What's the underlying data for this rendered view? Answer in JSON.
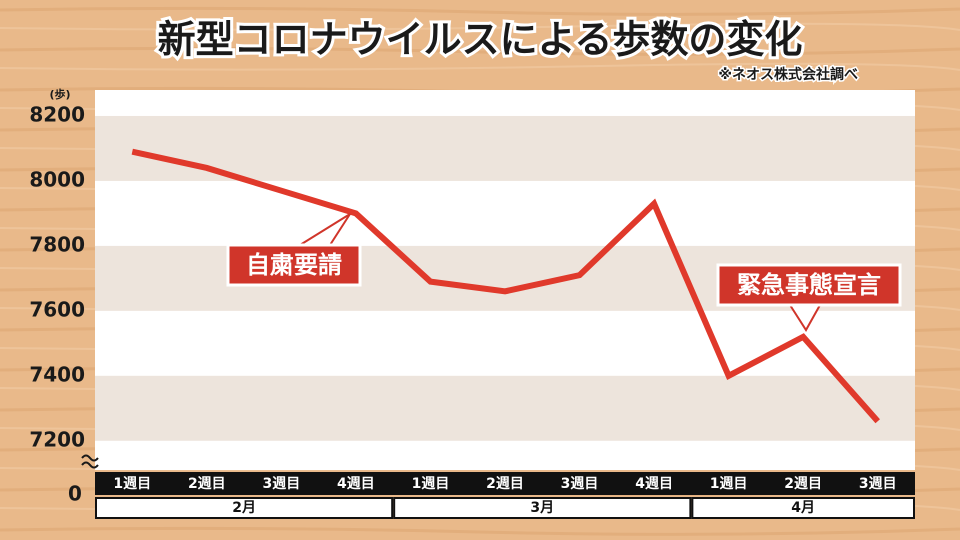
{
  "chart_data": {
    "type": "line",
    "title": "新型コロナウイルスによる歩数の変化",
    "source": "※ネオス株式会社調べ",
    "y_unit_label": "(歩)",
    "categories": [
      "1週目",
      "2週目",
      "3週目",
      "4週目",
      "1週目",
      "2週目",
      "3週目",
      "4週目",
      "1週目",
      "2週目",
      "3週目"
    ],
    "groups": [
      {
        "label": "2月",
        "span": 4
      },
      {
        "label": "3月",
        "span": 4
      },
      {
        "label": "4月",
        "span": 3
      }
    ],
    "series": [
      {
        "name": "歩数",
        "color": "#e0392b",
        "values": [
          8090,
          8040,
          7970,
          7900,
          7690,
          7660,
          7710,
          7930,
          7400,
          7520,
          7260
        ]
      }
    ],
    "ylim": [
      7110,
      8280
    ],
    "yticks": [
      7200,
      7400,
      7600,
      7800,
      8000,
      8200
    ],
    "axis_break_tick": 0,
    "grid": "bands",
    "annotations": [
      {
        "text": "自粛要請"
      },
      {
        "text": "緊急事態宣言"
      }
    ]
  }
}
